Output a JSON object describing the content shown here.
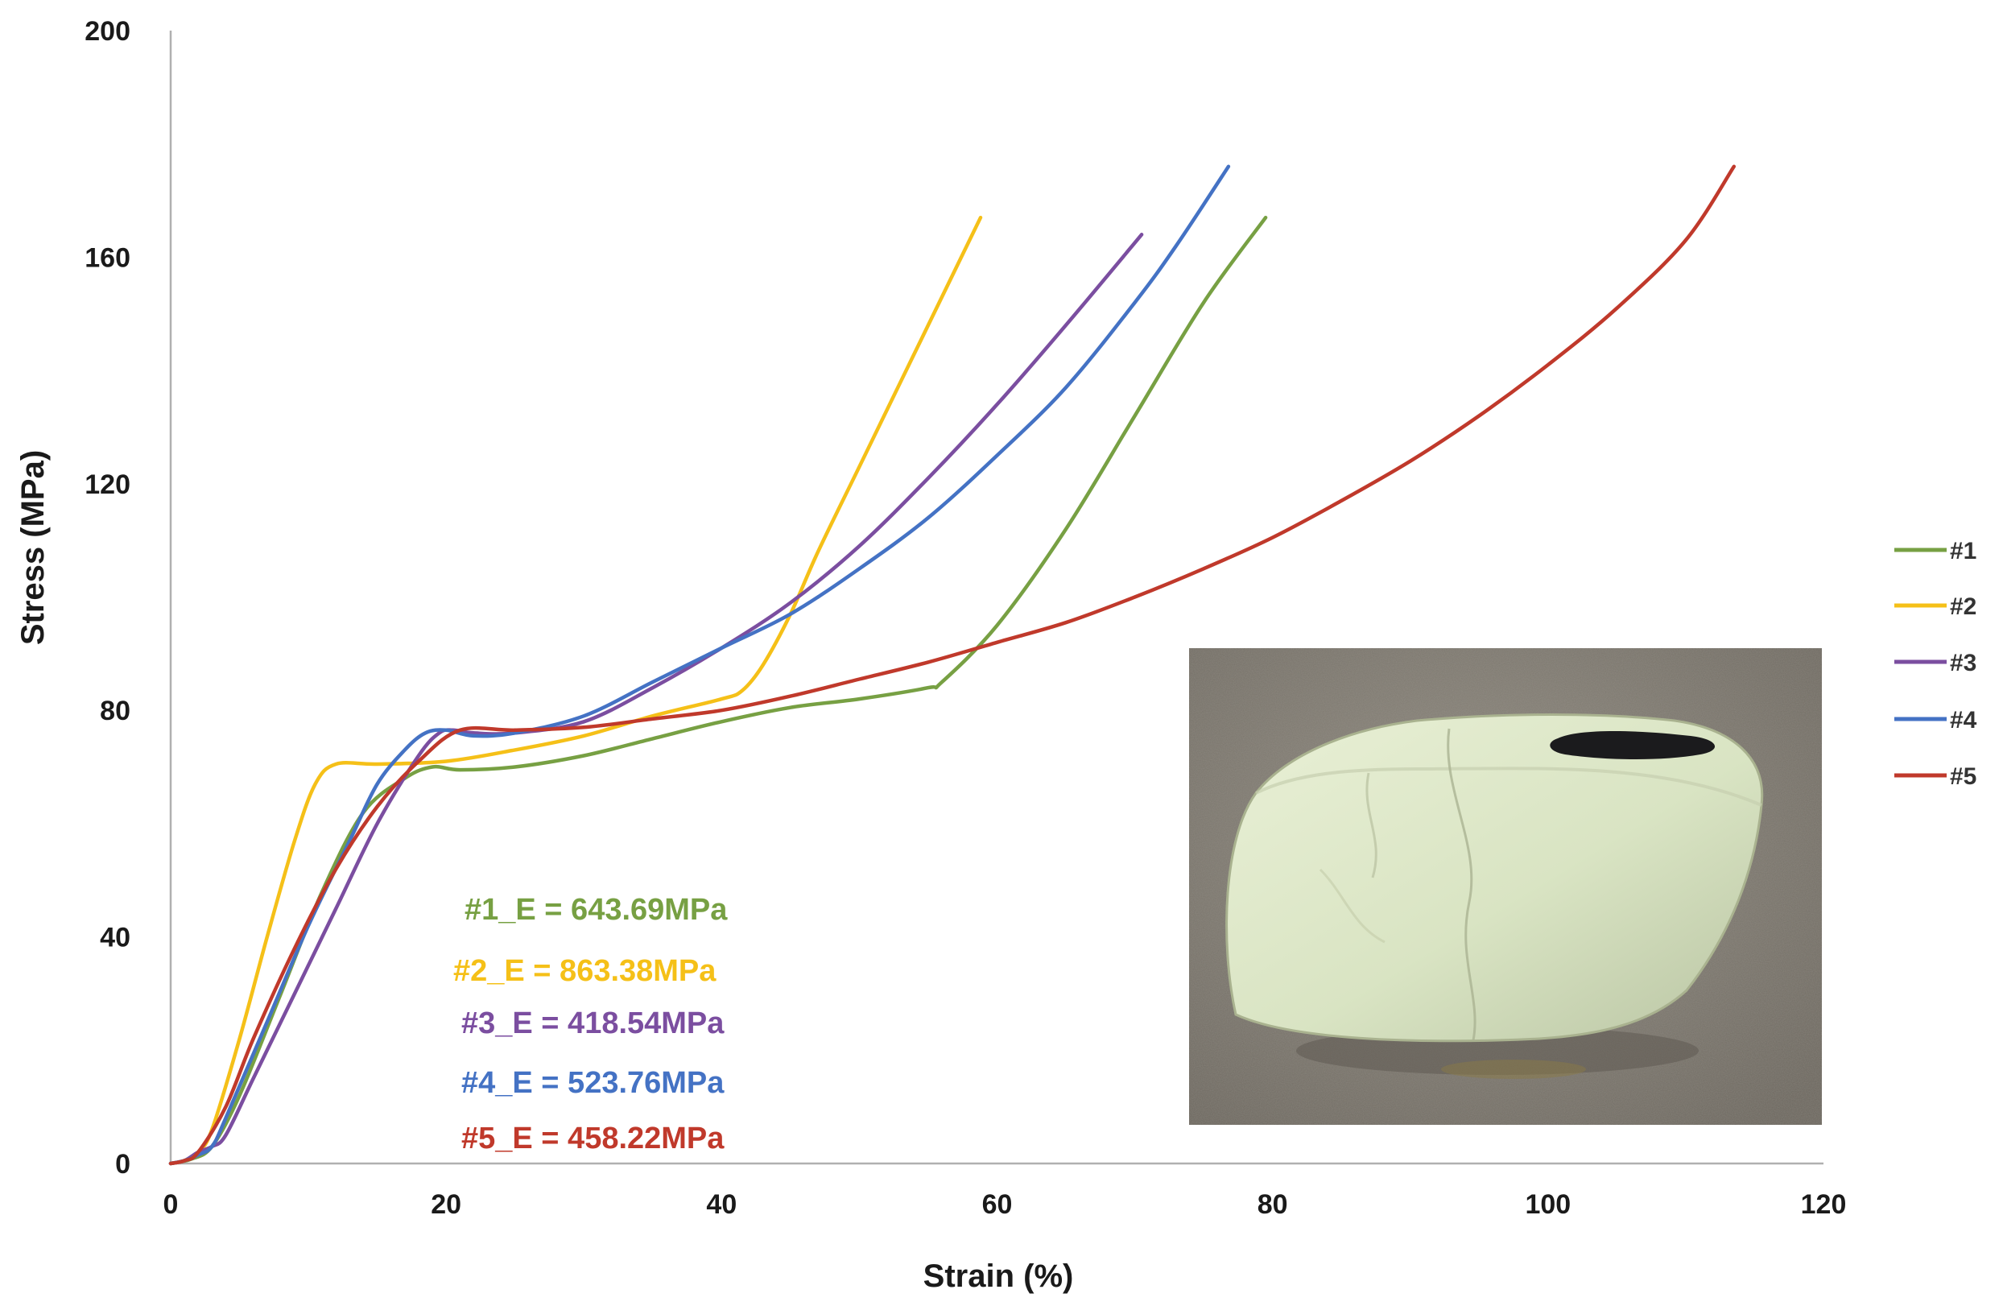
{
  "chart_data": {
    "type": "line",
    "xlabel": "Strain (%)",
    "ylabel": "Stress (MPa)",
    "xlim": [
      0,
      120
    ],
    "ylim": [
      0,
      200
    ],
    "x_ticks": [
      0,
      20,
      40,
      60,
      80,
      100,
      120
    ],
    "y_ticks": [
      0,
      40,
      80,
      120,
      160,
      200
    ],
    "legend_position": "right",
    "grid": false,
    "series": [
      {
        "name": "#1",
        "color": "#77a043",
        "x": [
          0,
          1.5,
          3,
          5,
          8,
          11,
          14,
          17,
          19,
          21,
          25,
          30,
          35,
          40,
          45,
          50,
          55,
          56,
          60,
          65,
          70,
          75,
          79.5
        ],
        "y": [
          0,
          0.8,
          3,
          12,
          30,
          48,
          62,
          68,
          70,
          69.5,
          70,
          72,
          75,
          78,
          80.5,
          82,
          84,
          85,
          95,
          112,
          132,
          152,
          167
        ]
      },
      {
        "name": "#2",
        "color": "#f5c018",
        "x": [
          0,
          1,
          2,
          3,
          5,
          7,
          9,
          10.5,
          12,
          15,
          20,
          25,
          30,
          35,
          40,
          41.5,
          43,
          45,
          47,
          50,
          53,
          56,
          58.8
        ],
        "y": [
          0,
          0.5,
          2,
          6,
          22,
          40,
          57,
          67,
          70.5,
          70.5,
          71,
          73,
          75.5,
          79,
          82,
          83.5,
          88,
          97,
          108,
          123,
          138,
          153,
          167
        ]
      },
      {
        "name": "#3",
        "color": "#7b4ea0",
        "x": [
          0,
          1,
          2,
          3,
          4,
          6,
          9,
          12,
          15,
          18,
          19.5,
          20.5,
          22,
          25,
          30,
          35,
          40,
          45,
          50,
          55,
          60,
          65,
          70.5
        ],
        "y": [
          0,
          0.5,
          2,
          3,
          5,
          15,
          30,
          45,
          60,
          72,
          76,
          76.5,
          76,
          76,
          78,
          84,
          91,
          99,
          109,
          121,
          134,
          148,
          164
        ]
      },
      {
        "name": "#4",
        "color": "#4472c4",
        "x": [
          0,
          1,
          2,
          3,
          4,
          7,
          10,
          13,
          15,
          17,
          18.5,
          20,
          22,
          25,
          30,
          35,
          40,
          45,
          50,
          55,
          60,
          65,
          70,
          73,
          76.8
        ],
        "y": [
          0,
          0.5,
          1.5,
          3,
          8,
          25,
          42,
          57,
          67,
          73,
          76,
          76.5,
          75.5,
          76,
          79,
          85,
          91,
          97,
          105,
          114,
          125,
          137,
          152,
          162,
          176
        ]
      },
      {
        "name": "#5",
        "color": "#c0392b",
        "x": [
          0,
          1,
          2,
          4,
          6,
          9,
          12,
          15,
          18,
          21,
          25,
          30,
          35,
          40,
          45,
          50,
          55,
          60,
          65,
          70,
          75,
          80,
          85,
          90,
          95,
          100,
          105,
          110,
          113.5
        ],
        "y": [
          0,
          0.5,
          2,
          10,
          22,
          38,
          52,
          63,
          71,
          76.5,
          76.5,
          77,
          78.5,
          80,
          82.5,
          85.5,
          88.5,
          92,
          95.5,
          100,
          105,
          110.5,
          117,
          124,
          132,
          141,
          151,
          163,
          176
        ]
      }
    ],
    "annotations": [
      {
        "text": "#1_E = 643.69MPa",
        "color": "#77a043"
      },
      {
        "text": "#2_E = 863.38MPa",
        "color": "#f5c018"
      },
      {
        "text": "#3_E = 418.54MPa",
        "color": "#7b4ea0"
      },
      {
        "text": "#4_E = 523.76MPa",
        "color": "#4472c4"
      },
      {
        "text": "#5_E = 458.22MPa",
        "color": "#c0392b"
      }
    ]
  }
}
